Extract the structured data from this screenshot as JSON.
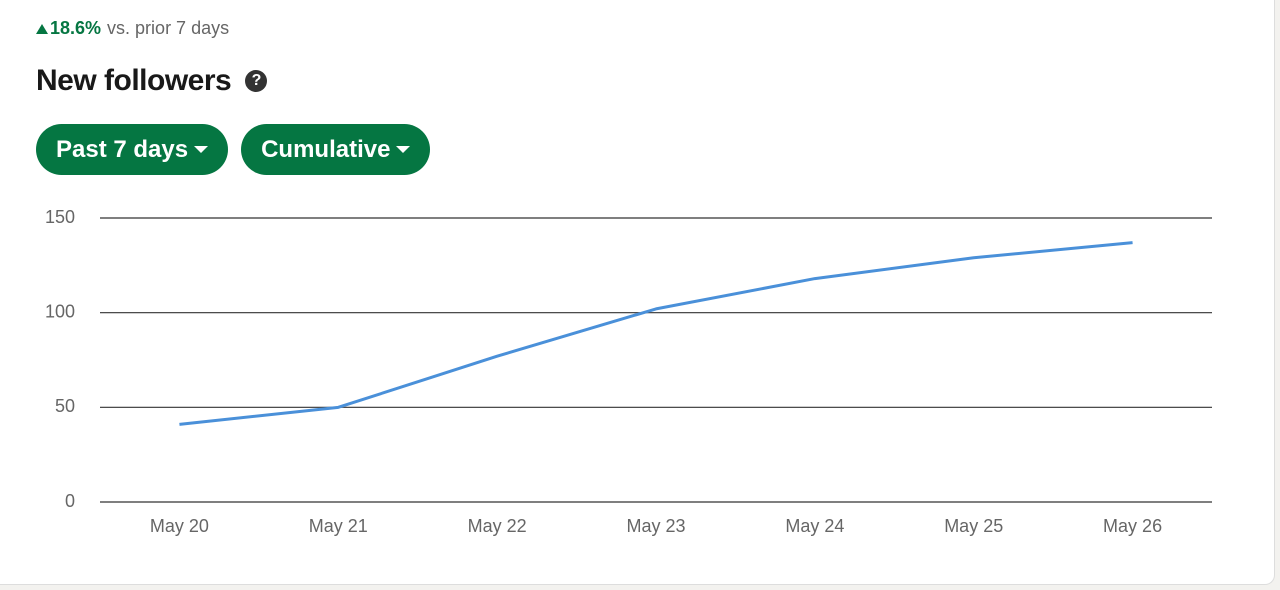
{
  "header": {
    "change": "18.6%",
    "comparison": "vs. prior 7 days",
    "title": "New followers",
    "filters": [
      "Past 7 days",
      "Cumulative"
    ]
  },
  "chart_data": {
    "type": "line",
    "categories": [
      "May 20",
      "May 21",
      "May 22",
      "May 23",
      "May 24",
      "May 25",
      "May 26"
    ],
    "series": [
      {
        "color": "#4a90d9",
        "values": [
          41,
          50,
          77,
          102,
          118,
          129,
          137
        ]
      }
    ],
    "ylim": [
      0,
      150
    ],
    "yticks": [
      0,
      50,
      100,
      150
    ],
    "grid": true
  }
}
